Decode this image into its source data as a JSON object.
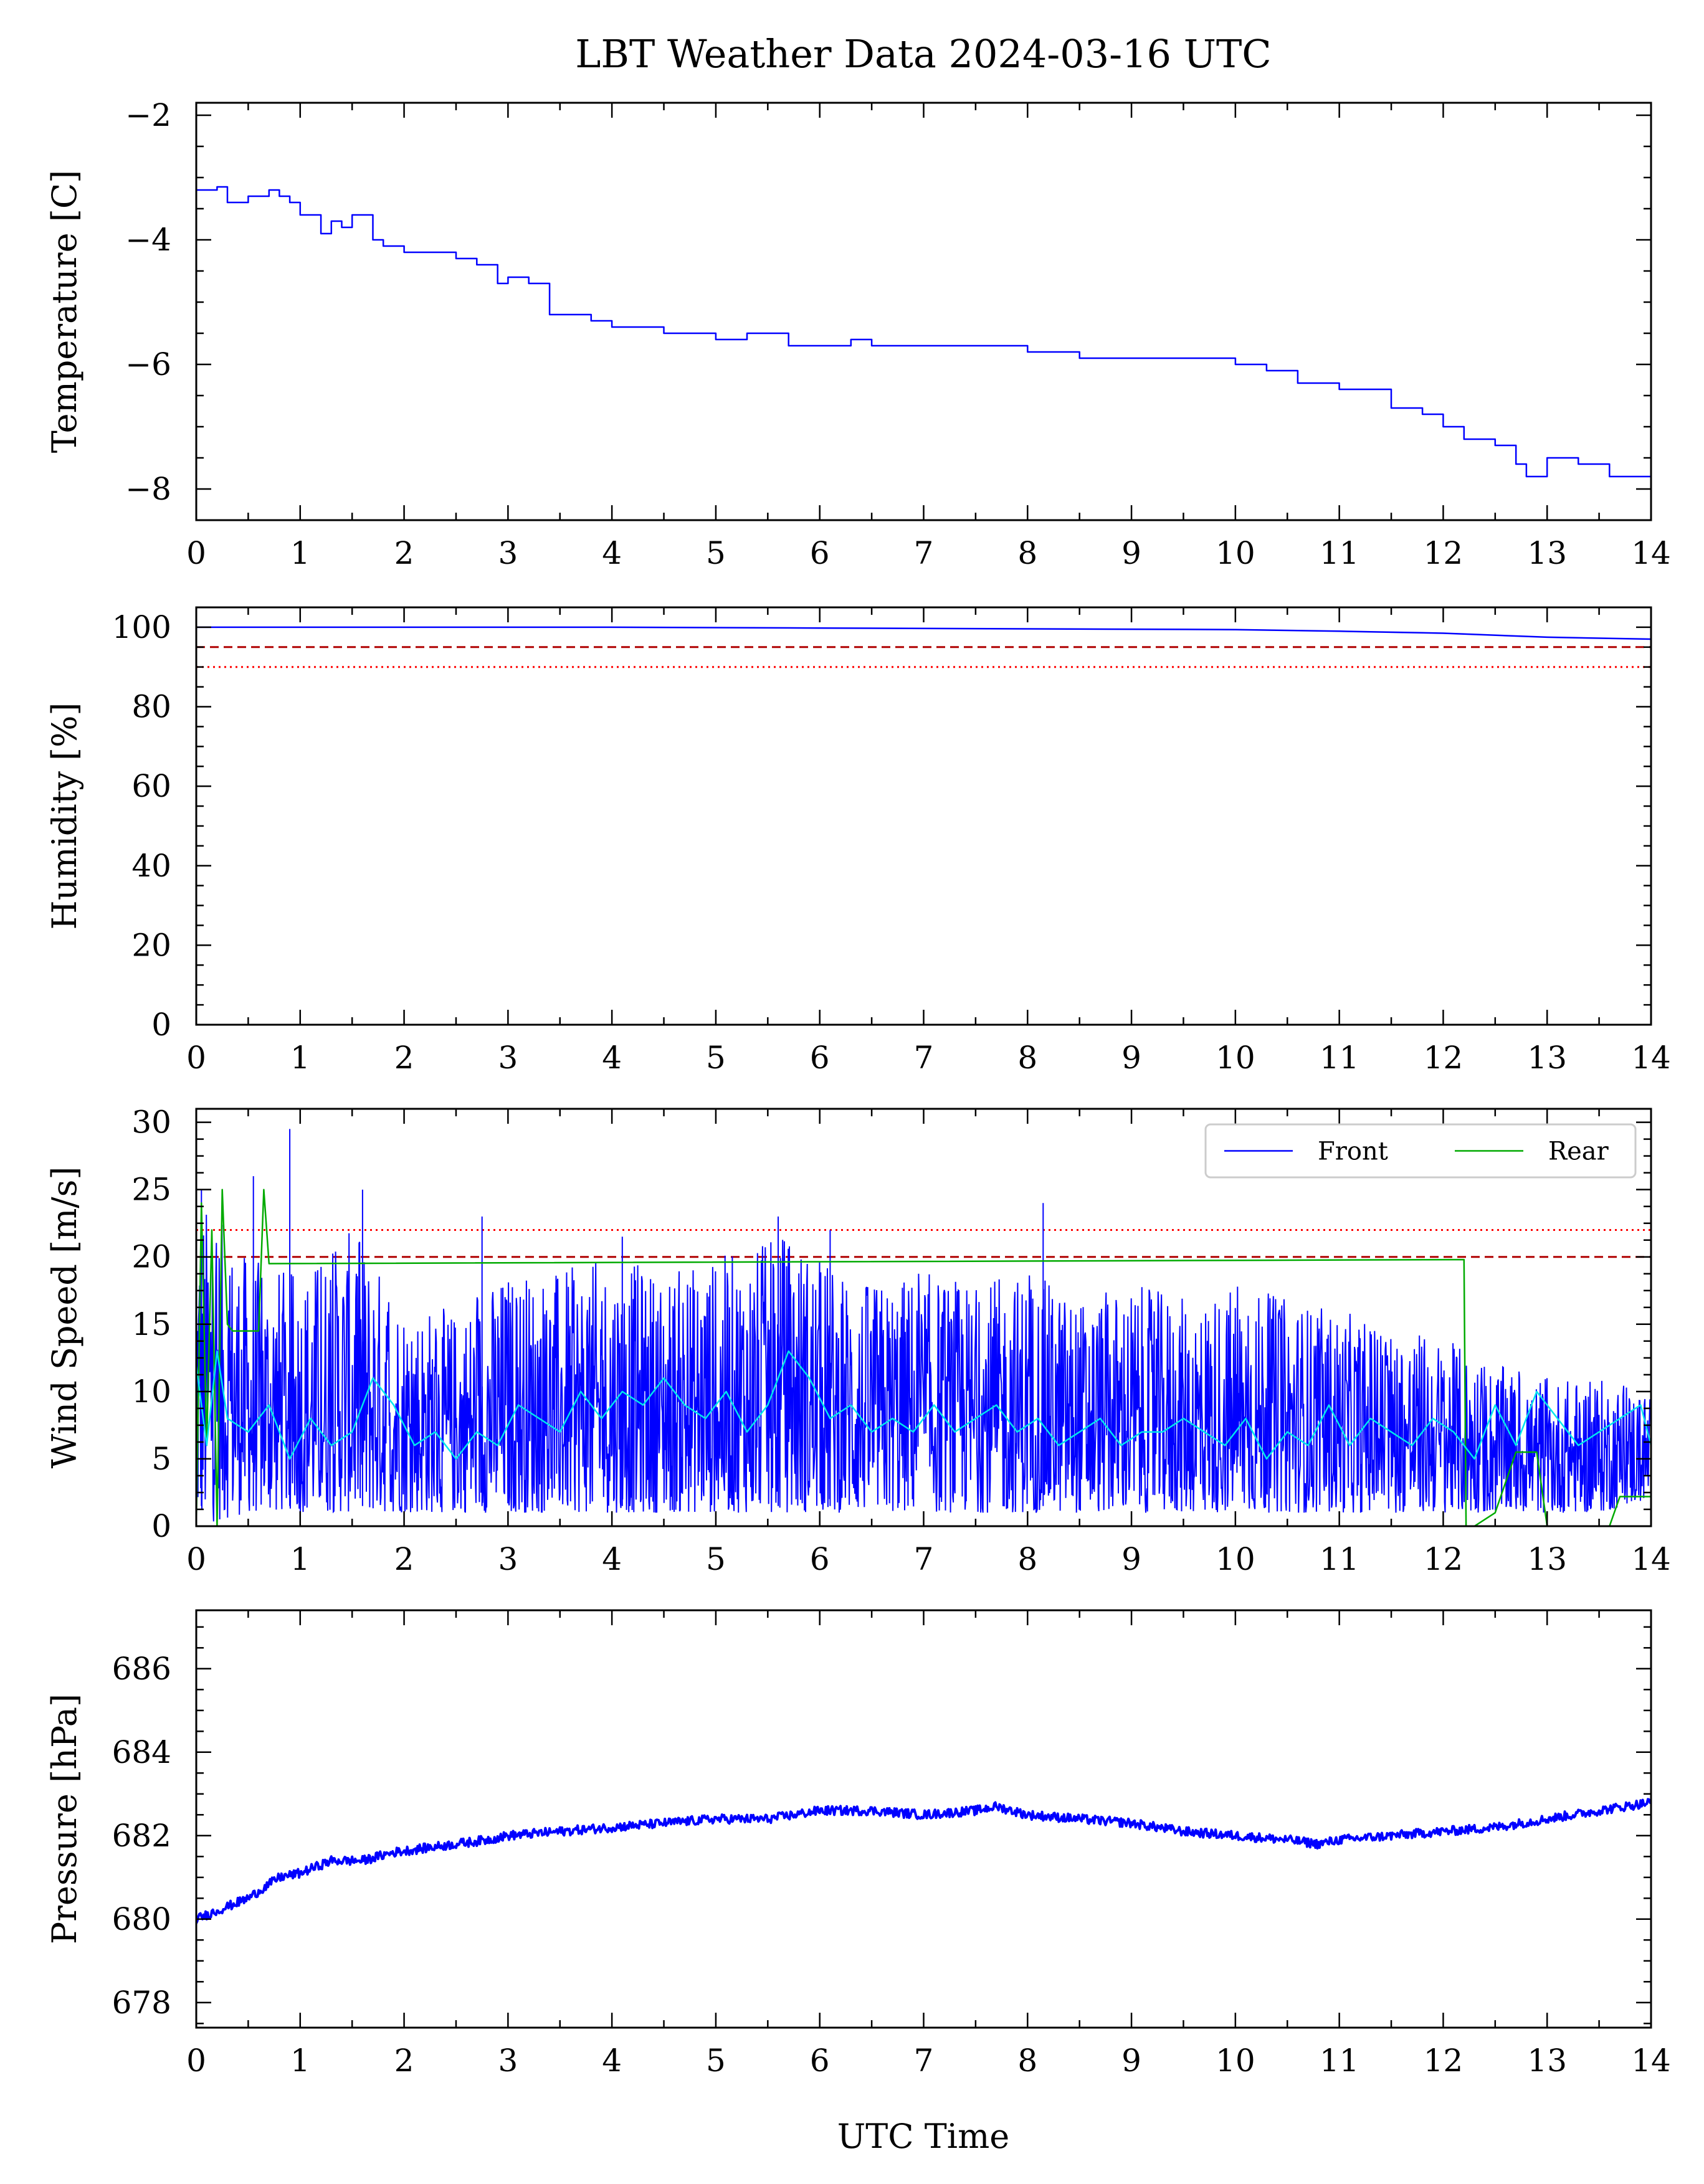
{
  "title": "LBT Weather Data 2024-03-16 UTC",
  "xlabel": "UTC Time",
  "colors": {
    "series_blue": "#0000ff",
    "series_cyan": "#00e5ee",
    "series_green": "#00aa00",
    "limit_dashed": "#b00000",
    "limit_dotted": "#ff0000"
  },
  "chart_data": [
    {
      "type": "line",
      "ylabel": "Temperature [C]",
      "xlim": [
        0,
        14
      ],
      "ylim": [
        -8.5,
        -1.8
      ],
      "xticks": [
        "0",
        "1",
        "2",
        "3",
        "4",
        "5",
        "6",
        "7",
        "8",
        "9",
        "10",
        "11",
        "12",
        "13",
        "14"
      ],
      "yticks": [
        -8,
        -6,
        -4,
        -2
      ],
      "ytick_labels": [
        "−8",
        "−6",
        "−4",
        "−2"
      ],
      "series": [
        {
          "color": "#0000ff",
          "x": [
            0,
            0.2,
            0.3,
            0.5,
            0.7,
            0.8,
            0.9,
            1.0,
            1.2,
            1.3,
            1.4,
            1.5,
            1.7,
            1.8,
            2.0,
            2.3,
            2.5,
            2.7,
            2.9,
            3.0,
            3.2,
            3.4,
            3.5,
            3.8,
            4.0,
            4.2,
            4.5,
            4.8,
            5.0,
            5.3,
            5.5,
            5.7,
            6.0,
            6.3,
            6.5,
            7.0,
            7.5,
            8.0,
            8.2,
            8.5,
            9.0,
            9.5,
            10.0,
            10.3,
            10.6,
            11.0,
            11.3,
            11.5,
            11.8,
            12.0,
            12.2,
            12.5,
            12.7,
            12.8,
            13.0,
            13.3,
            13.6,
            14.0
          ],
          "y": [
            -3.2,
            -3.15,
            -3.4,
            -3.3,
            -3.2,
            -3.3,
            -3.4,
            -3.6,
            -3.9,
            -3.7,
            -3.8,
            -3.6,
            -4.0,
            -4.1,
            -4.2,
            -4.2,
            -4.3,
            -4.4,
            -4.7,
            -4.6,
            -4.7,
            -5.2,
            -5.2,
            -5.3,
            -5.4,
            -5.4,
            -5.5,
            -5.5,
            -5.6,
            -5.5,
            -5.5,
            -5.7,
            -5.7,
            -5.6,
            -5.7,
            -5.7,
            -5.7,
            -5.8,
            -5.8,
            -5.9,
            -5.9,
            -5.9,
            -6.0,
            -6.1,
            -6.3,
            -6.4,
            -6.4,
            -6.7,
            -6.8,
            -7.0,
            -7.2,
            -7.3,
            -7.6,
            -7.8,
            -7.5,
            -7.6,
            -7.8,
            -7.8
          ]
        }
      ]
    },
    {
      "type": "line",
      "ylabel": "Humidity [%]",
      "xlim": [
        0,
        14
      ],
      "ylim": [
        0,
        105
      ],
      "xticks": [
        "0",
        "1",
        "2",
        "3",
        "4",
        "5",
        "6",
        "7",
        "8",
        "9",
        "10",
        "11",
        "12",
        "13",
        "14"
      ],
      "yticks": [
        0,
        20,
        40,
        60,
        80,
        100
      ],
      "ytick_labels": [
        "0",
        "20",
        "40",
        "60",
        "80",
        "100"
      ],
      "hlines": [
        {
          "y": 95,
          "style": "dashed",
          "color": "#b00000"
        },
        {
          "y": 90,
          "style": "dotted",
          "color": "#ff0000"
        }
      ],
      "series": [
        {
          "color": "#0000ff",
          "x": [
            0,
            2,
            4,
            6,
            8,
            10,
            11,
            12,
            13,
            14
          ],
          "y": [
            100,
            100,
            100,
            99.8,
            99.6,
            99.4,
            99.0,
            98.5,
            97.5,
            97.0
          ]
        }
      ]
    },
    {
      "type": "line",
      "ylabel": "Wind Speed [m/s]",
      "xlim": [
        0,
        14
      ],
      "ylim": [
        0,
        31
      ],
      "xticks": [
        "0",
        "1",
        "2",
        "3",
        "4",
        "5",
        "6",
        "7",
        "8",
        "9",
        "10",
        "11",
        "12",
        "13",
        "14"
      ],
      "yticks": [
        0,
        5,
        10,
        15,
        20,
        25,
        30
      ],
      "ytick_labels": [
        "0",
        "5",
        "10",
        "15",
        "20",
        "25",
        "30"
      ],
      "legend": {
        "position": "upper right",
        "entries": [
          "Front",
          "Rear"
        ]
      },
      "hlines": [
        {
          "y": 22,
          "style": "dotted",
          "color": "#ff0000"
        },
        {
          "y": 20,
          "style": "dashed",
          "color": "#b00000"
        }
      ],
      "series": [
        {
          "name": "Front",
          "color": "#0000ff",
          "kind": "noisy band",
          "x": [
            0,
            0.5,
            1,
            1.5,
            2,
            2.5,
            3,
            3.5,
            4,
            4.5,
            5,
            5.5,
            5.7,
            6,
            6.5,
            7,
            7.5,
            8,
            8.5,
            9,
            9.5,
            10,
            10.5,
            11,
            11.5,
            12,
            12.5,
            13,
            13.5,
            14
          ],
          "y_low": [
            0,
            1,
            1,
            1,
            1,
            1,
            1,
            1,
            1,
            1,
            1,
            1,
            1,
            1,
            1,
            1,
            1,
            1,
            1,
            1,
            1,
            1,
            1,
            1,
            1,
            1,
            1,
            1,
            1,
            2
          ],
          "y_high": [
            25,
            20,
            19,
            22,
            17,
            16,
            19,
            19,
            20,
            19,
            20,
            21,
            22,
            20,
            18,
            19,
            18,
            19,
            17,
            18,
            17,
            18,
            17,
            16,
            15,
            14,
            12,
            11,
            11,
            10
          ],
          "peaks": [
            [
              0.05,
              25
            ],
            [
              0.55,
              26
            ],
            [
              0.9,
              29.5
            ],
            [
              1.6,
              25
            ],
            [
              2.75,
              23
            ],
            [
              4.1,
              21.5
            ],
            [
              5.6,
              23
            ],
            [
              6.1,
              22
            ],
            [
              8.15,
              24
            ]
          ]
        },
        {
          "name": "Rear",
          "color": "#00aa00",
          "x": [
            0,
            0.05,
            0.1,
            0.15,
            0.2,
            0.25,
            0.3,
            0.35,
            0.4,
            0.45,
            0.5,
            0.55,
            0.6,
            0.65,
            0.7,
            12.1,
            12.2,
            12.22,
            12.3,
            12.5,
            12.7,
            12.9,
            13.0,
            13.3,
            13.6,
            13.7,
            14.0
          ],
          "y": [
            0,
            24,
            6,
            22,
            0,
            25,
            15,
            14.5,
            14.5,
            14.5,
            14.5,
            14.5,
            14.5,
            25,
            19.5,
            19.8,
            19.8,
            0,
            0,
            1,
            5.5,
            5.5,
            0,
            0,
            0,
            2.2,
            2.2
          ]
        },
        {
          "color": "#00e5ee",
          "x": [
            0,
            0.1,
            0.2,
            0.3,
            0.5,
            0.7,
            0.9,
            1.1,
            1.3,
            1.5,
            1.7,
            1.9,
            2.1,
            2.3,
            2.5,
            2.7,
            2.9,
            3.1,
            3.3,
            3.5,
            3.7,
            3.9,
            4.1,
            4.3,
            4.5,
            4.7,
            4.9,
            5.1,
            5.3,
            5.5,
            5.7,
            5.9,
            6.1,
            6.3,
            6.5,
            6.7,
            6.9,
            7.1,
            7.3,
            7.5,
            7.7,
            7.9,
            8.1,
            8.3,
            8.5,
            8.7,
            8.9,
            9.1,
            9.3,
            9.5,
            9.7,
            9.9,
            10.1,
            10.3,
            10.5,
            10.7,
            10.9,
            11.1,
            11.3,
            11.5,
            11.7,
            11.9,
            12.1,
            12.3,
            12.5,
            12.7,
            12.9,
            13.1,
            13.3,
            13.5,
            13.7,
            13.9,
            14.0
          ],
          "y": [
            12,
            6,
            13,
            8,
            7,
            9,
            5,
            8,
            6,
            7,
            11,
            9,
            6,
            7,
            5,
            7,
            6,
            9,
            8,
            7,
            10,
            8,
            10,
            9,
            11,
            9,
            8,
            10,
            7,
            9,
            13,
            11,
            8,
            9,
            7,
            8,
            7,
            9,
            7,
            8,
            9,
            7,
            8,
            6,
            7,
            8,
            6,
            7,
            7,
            8,
            7,
            6,
            8,
            5,
            7,
            6,
            9,
            6,
            8,
            7,
            6,
            8,
            7,
            5,
            9,
            6,
            10,
            8,
            6,
            7,
            8,
            9,
            6
          ]
        }
      ]
    },
    {
      "type": "line",
      "ylabel": "Pressure [hPa]",
      "xlim": [
        0,
        14
      ],
      "ylim": [
        677.4,
        687.4
      ],
      "xticks": [
        "0",
        "1",
        "2",
        "3",
        "4",
        "5",
        "6",
        "7",
        "8",
        "9",
        "10",
        "11",
        "12",
        "13",
        "14"
      ],
      "yticks": [
        678,
        680,
        682,
        684,
        686
      ],
      "ytick_labels": [
        "678",
        "680",
        "682",
        "684",
        "686"
      ],
      "series": [
        {
          "color": "#0000ff",
          "x": [
            0,
            0.2,
            0.5,
            0.8,
            1.0,
            1.3,
            1.6,
            1.9,
            2.2,
            2.5,
            2.8,
            3.0,
            3.5,
            4.0,
            4.5,
            5.0,
            5.5,
            6.0,
            6.5,
            7.0,
            7.5,
            7.7,
            8.0,
            8.5,
            9.0,
            9.5,
            10.0,
            10.5,
            10.8,
            11.0,
            11.5,
            12.0,
            12.5,
            13.0,
            13.5,
            14.0
          ],
          "y": [
            680.0,
            680.2,
            680.5,
            681.0,
            681.1,
            681.4,
            681.4,
            681.6,
            681.7,
            681.8,
            681.9,
            682.0,
            682.1,
            682.2,
            682.3,
            682.4,
            682.4,
            682.6,
            682.6,
            682.5,
            682.6,
            682.7,
            682.5,
            682.4,
            682.3,
            682.1,
            682.0,
            681.9,
            681.8,
            681.9,
            682.0,
            682.1,
            682.2,
            682.4,
            682.6,
            682.8
          ]
        }
      ]
    }
  ]
}
